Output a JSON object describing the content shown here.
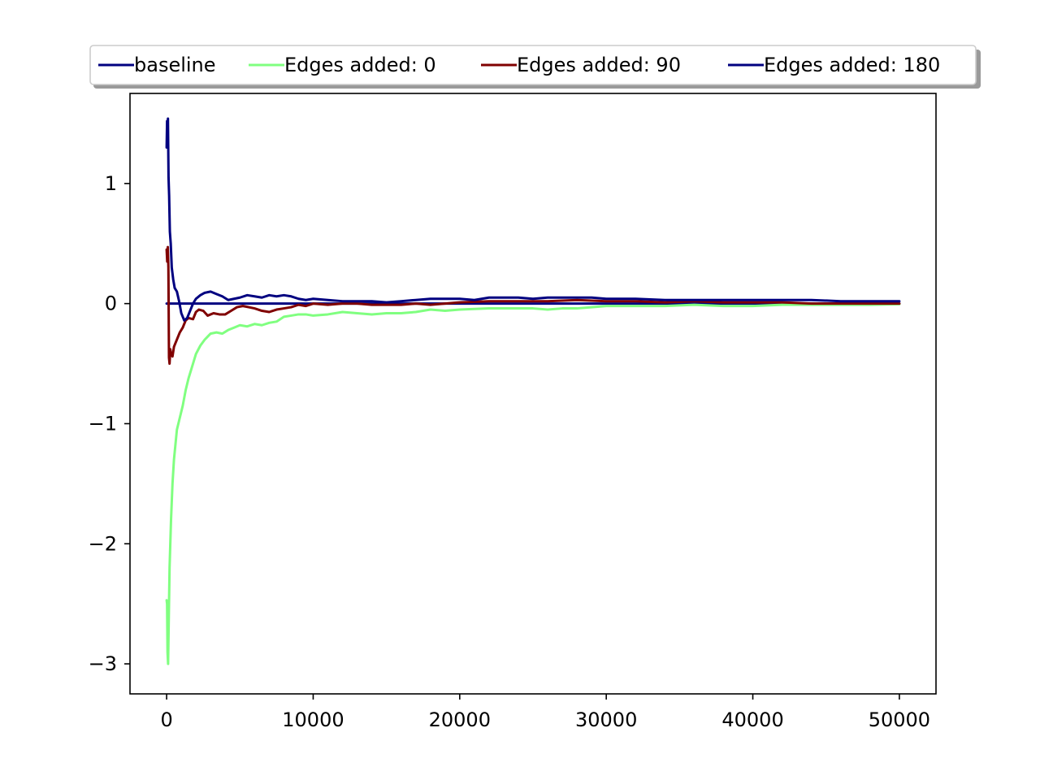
{
  "chart_data": {
    "type": "line",
    "title": "",
    "xlabel": "",
    "ylabel": "",
    "xlim": [
      -2500,
      52500
    ],
    "ylim": [
      -3.25,
      1.75
    ],
    "xticks": [
      0,
      10000,
      20000,
      30000,
      40000,
      50000
    ],
    "xtick_labels": [
      "0",
      "10000",
      "20000",
      "30000",
      "40000",
      "50000"
    ],
    "yticks": [
      -3,
      -2,
      -1,
      0,
      1
    ],
    "ytick_labels": [
      "−3",
      "−2",
      "−1",
      "0",
      "1"
    ],
    "grid": false,
    "legend_position": "top-center, above plot",
    "series": [
      {
        "name": "baseline",
        "color": "#000080",
        "points": [
          [
            0,
            0
          ],
          [
            50000,
            0
          ]
        ]
      },
      {
        "name": "Edges added: 0",
        "color": "#80ff80",
        "points": [
          [
            0,
            -2.47
          ],
          [
            30,
            -2.5
          ],
          [
            60,
            -2.9
          ],
          [
            100,
            -3.0
          ],
          [
            150,
            -2.6
          ],
          [
            200,
            -2.2
          ],
          [
            300,
            -1.8
          ],
          [
            400,
            -1.5
          ],
          [
            500,
            -1.3
          ],
          [
            700,
            -1.05
          ],
          [
            900,
            -0.95
          ],
          [
            1100,
            -0.85
          ],
          [
            1300,
            -0.72
          ],
          [
            1500,
            -0.62
          ],
          [
            1800,
            -0.5
          ],
          [
            2000,
            -0.42
          ],
          [
            2300,
            -0.35
          ],
          [
            2600,
            -0.3
          ],
          [
            3000,
            -0.25
          ],
          [
            3400,
            -0.24
          ],
          [
            3800,
            -0.25
          ],
          [
            4200,
            -0.22
          ],
          [
            4600,
            -0.2
          ],
          [
            5000,
            -0.18
          ],
          [
            5500,
            -0.19
          ],
          [
            6000,
            -0.17
          ],
          [
            6500,
            -0.18
          ],
          [
            7000,
            -0.16
          ],
          [
            7500,
            -0.15
          ],
          [
            8000,
            -0.11
          ],
          [
            8500,
            -0.1
          ],
          [
            9000,
            -0.09
          ],
          [
            9500,
            -0.09
          ],
          [
            10000,
            -0.1
          ],
          [
            11000,
            -0.09
          ],
          [
            12000,
            -0.07
          ],
          [
            13000,
            -0.08
          ],
          [
            14000,
            -0.09
          ],
          [
            15000,
            -0.08
          ],
          [
            16000,
            -0.08
          ],
          [
            17000,
            -0.07
          ],
          [
            18000,
            -0.05
          ],
          [
            19000,
            -0.06
          ],
          [
            20000,
            -0.05
          ],
          [
            22000,
            -0.04
          ],
          [
            24000,
            -0.04
          ],
          [
            25000,
            -0.04
          ],
          [
            26000,
            -0.05
          ],
          [
            27000,
            -0.04
          ],
          [
            28000,
            -0.04
          ],
          [
            29000,
            -0.03
          ],
          [
            30000,
            -0.02
          ],
          [
            32000,
            -0.02
          ],
          [
            34000,
            -0.02
          ],
          [
            36000,
            -0.01
          ],
          [
            38000,
            -0.02
          ],
          [
            40000,
            -0.02
          ],
          [
            42000,
            -0.01
          ],
          [
            44000,
            -0.01
          ],
          [
            46000,
            -0.01
          ],
          [
            48000,
            -0.01
          ],
          [
            50000,
            -0.005
          ]
        ]
      },
      {
        "name": "Edges added: 90",
        "color": "#800000",
        "points": [
          [
            0,
            0.45
          ],
          [
            40,
            0.35
          ],
          [
            80,
            0.47
          ],
          [
            120,
            0.3
          ],
          [
            160,
            -0.45
          ],
          [
            200,
            -0.5
          ],
          [
            250,
            -0.38
          ],
          [
            300,
            -0.42
          ],
          [
            400,
            -0.44
          ],
          [
            500,
            -0.36
          ],
          [
            700,
            -0.3
          ],
          [
            900,
            -0.24
          ],
          [
            1100,
            -0.2
          ],
          [
            1300,
            -0.14
          ],
          [
            1500,
            -0.12
          ],
          [
            1800,
            -0.13
          ],
          [
            2000,
            -0.07
          ],
          [
            2200,
            -0.05
          ],
          [
            2500,
            -0.06
          ],
          [
            2800,
            -0.1
          ],
          [
            3200,
            -0.08
          ],
          [
            3600,
            -0.09
          ],
          [
            4000,
            -0.09
          ],
          [
            4400,
            -0.06
          ],
          [
            4800,
            -0.03
          ],
          [
            5200,
            -0.02
          ],
          [
            5600,
            -0.03
          ],
          [
            6000,
            -0.04
          ],
          [
            6500,
            -0.06
          ],
          [
            7000,
            -0.07
          ],
          [
            7500,
            -0.05
          ],
          [
            8000,
            -0.04
          ],
          [
            8500,
            -0.03
          ],
          [
            9000,
            -0.01
          ],
          [
            9500,
            -0.02
          ],
          [
            10000,
            0.0
          ],
          [
            11000,
            -0.01
          ],
          [
            12000,
            0.0
          ],
          [
            13000,
            0.0
          ],
          [
            14000,
            -0.01
          ],
          [
            15000,
            -0.01
          ],
          [
            16000,
            -0.01
          ],
          [
            17000,
            0.0
          ],
          [
            18000,
            -0.01
          ],
          [
            19000,
            0.0
          ],
          [
            20000,
            0.01
          ],
          [
            22000,
            0.02
          ],
          [
            24000,
            0.02
          ],
          [
            26000,
            0.02
          ],
          [
            28000,
            0.03
          ],
          [
            30000,
            0.02
          ],
          [
            32000,
            0.02
          ],
          [
            34000,
            0.01
          ],
          [
            36000,
            0.02
          ],
          [
            38000,
            0.01
          ],
          [
            40000,
            0.01
          ],
          [
            42000,
            0.01
          ],
          [
            44000,
            0.0
          ],
          [
            46000,
            0.0
          ],
          [
            48000,
            0.0
          ],
          [
            50000,
            0.0
          ]
        ]
      },
      {
        "name": "Edges added: 180",
        "color": "#000080",
        "points": [
          [
            0,
            1.3
          ],
          [
            30,
            1.52
          ],
          [
            60,
            1.38
          ],
          [
            90,
            1.54
          ],
          [
            130,
            1.05
          ],
          [
            170,
            0.9
          ],
          [
            220,
            0.6
          ],
          [
            280,
            0.5
          ],
          [
            350,
            0.3
          ],
          [
            450,
            0.2
          ],
          [
            550,
            0.13
          ],
          [
            700,
            0.1
          ],
          [
            850,
            0.02
          ],
          [
            1000,
            -0.08
          ],
          [
            1200,
            -0.14
          ],
          [
            1400,
            -0.12
          ],
          [
            1600,
            -0.06
          ],
          [
            1800,
            0.0
          ],
          [
            2000,
            0.04
          ],
          [
            2300,
            0.07
          ],
          [
            2600,
            0.09
          ],
          [
            3000,
            0.1
          ],
          [
            3400,
            0.08
          ],
          [
            3800,
            0.06
          ],
          [
            4200,
            0.03
          ],
          [
            4600,
            0.04
          ],
          [
            5000,
            0.05
          ],
          [
            5500,
            0.07
          ],
          [
            6000,
            0.06
          ],
          [
            6500,
            0.05
          ],
          [
            7000,
            0.07
          ],
          [
            7500,
            0.06
          ],
          [
            8000,
            0.07
          ],
          [
            8500,
            0.06
          ],
          [
            9000,
            0.04
          ],
          [
            9500,
            0.03
          ],
          [
            10000,
            0.04
          ],
          [
            11000,
            0.03
          ],
          [
            12000,
            0.02
          ],
          [
            13000,
            0.02
          ],
          [
            14000,
            0.02
          ],
          [
            15000,
            0.01
          ],
          [
            16000,
            0.02
          ],
          [
            17000,
            0.03
          ],
          [
            18000,
            0.04
          ],
          [
            19000,
            0.04
          ],
          [
            20000,
            0.04
          ],
          [
            21000,
            0.03
          ],
          [
            22000,
            0.05
          ],
          [
            23000,
            0.05
          ],
          [
            24000,
            0.05
          ],
          [
            25000,
            0.04
          ],
          [
            26000,
            0.05
          ],
          [
            27000,
            0.05
          ],
          [
            28000,
            0.05
          ],
          [
            29000,
            0.05
          ],
          [
            30000,
            0.04
          ],
          [
            31000,
            0.04
          ],
          [
            32000,
            0.04
          ],
          [
            34000,
            0.03
          ],
          [
            36000,
            0.03
          ],
          [
            38000,
            0.03
          ],
          [
            40000,
            0.03
          ],
          [
            42000,
            0.03
          ],
          [
            44000,
            0.03
          ],
          [
            46000,
            0.02
          ],
          [
            48000,
            0.02
          ],
          [
            50000,
            0.02
          ]
        ]
      }
    ]
  }
}
